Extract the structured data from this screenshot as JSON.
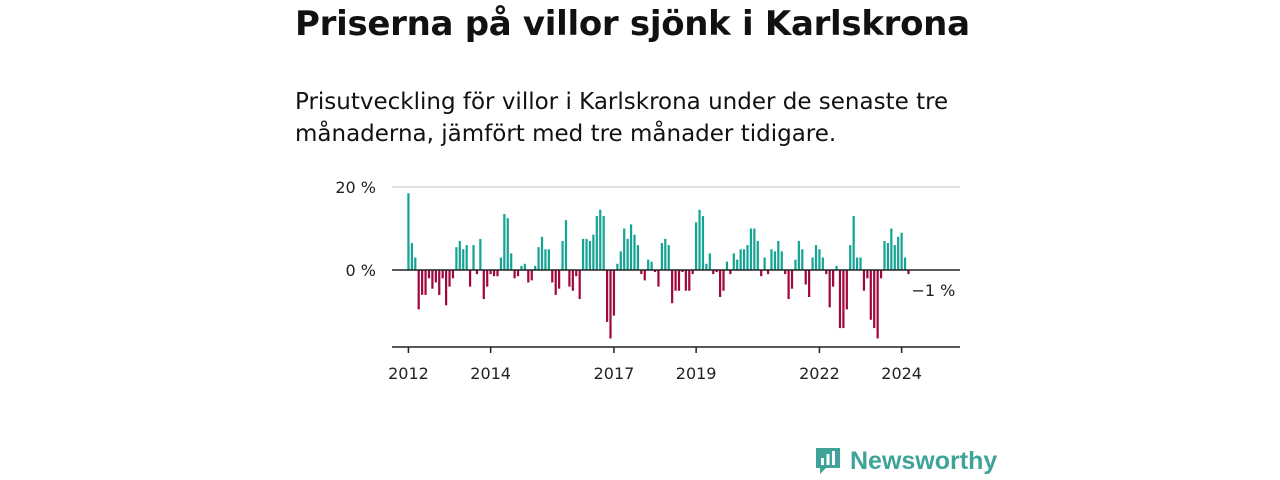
{
  "header": {
    "title": "Priserna på villor sjönk i Karlskrona",
    "subtitle": "Prisutveckling för villor i Karlskrona under de senaste tre månaderna, jämfört med tre månader tidigare."
  },
  "brand": {
    "name": "Newsworthy",
    "icon": "newsworthy-logo-icon",
    "color": "#3fa39a"
  },
  "colors": {
    "positive": "#14a394",
    "negative": "#a0073f",
    "axis": "#222222",
    "grid": "#d9d9d9"
  },
  "chart_data": {
    "type": "bar",
    "title": "Priserna på villor sjönk i Karlskrona",
    "xlabel": "",
    "ylabel": "",
    "ylim": [
      -19,
      20
    ],
    "xlim": [
      2011.6,
      2025.42
    ],
    "grid": true,
    "y_ticks": [
      {
        "value": 20,
        "label": "20 %"
      },
      {
        "value": 0,
        "label": "0 %"
      }
    ],
    "x_ticks": [
      {
        "value": 2012,
        "label": "2012"
      },
      {
        "value": 2014,
        "label": "2014"
      },
      {
        "value": 2017,
        "label": "2017"
      },
      {
        "value": 2019,
        "label": "2019"
      },
      {
        "value": 2022,
        "label": "2022"
      },
      {
        "value": 2024,
        "label": "2024"
      }
    ],
    "annotation": {
      "text": "−1 %",
      "x": 2024.58,
      "y": -1
    },
    "x_start": 2012.0,
    "x_step": 0.08333,
    "values": [
      18.5,
      6.5,
      3,
      -9.5,
      -6,
      -6,
      -2,
      -4.5,
      -3,
      -6,
      -2,
      -8.5,
      -4,
      -2,
      5.5,
      7,
      5,
      6,
      -4,
      6,
      -1,
      7.5,
      -7,
      -4,
      -1,
      -1.5,
      -1.5,
      3,
      13.5,
      12.5,
      4,
      -2,
      -1.5,
      1,
      1.5,
      -3,
      -2.5,
      1,
      5.5,
      8,
      5,
      5,
      -3,
      -6,
      -4.5,
      7,
      12,
      -4,
      -5,
      -1.5,
      -7,
      7.5,
      7.5,
      7,
      8.5,
      13,
      14.5,
      13,
      -12.5,
      -16.5,
      -11,
      1.5,
      4.5,
      10,
      7.5,
      11,
      8.5,
      6,
      -1,
      -2.5,
      2.5,
      2,
      -0.5,
      -4,
      6.5,
      7.5,
      6,
      -8,
      -5,
      -5,
      -0.5,
      -5,
      -5,
      -1,
      11.5,
      14.5,
      13,
      1.5,
      4,
      -1,
      -0.5,
      -6.5,
      -5,
      2,
      -1,
      4,
      2.5,
      5,
      5,
      6,
      10,
      10,
      7,
      -1.5,
      3,
      -1,
      5,
      4.5,
      7,
      4.5,
      -1,
      -7,
      -4.5,
      2.5,
      7,
      5,
      -3.5,
      -6.5,
      3,
      6,
      5,
      3,
      -1,
      -9,
      -4,
      1,
      -14,
      -14,
      -9.5,
      6,
      13,
      3,
      3,
      -5,
      -2,
      -12,
      -14,
      -16.5,
      -2,
      7,
      6.5,
      10,
      6,
      8,
      9,
      3,
      -1
    ]
  }
}
